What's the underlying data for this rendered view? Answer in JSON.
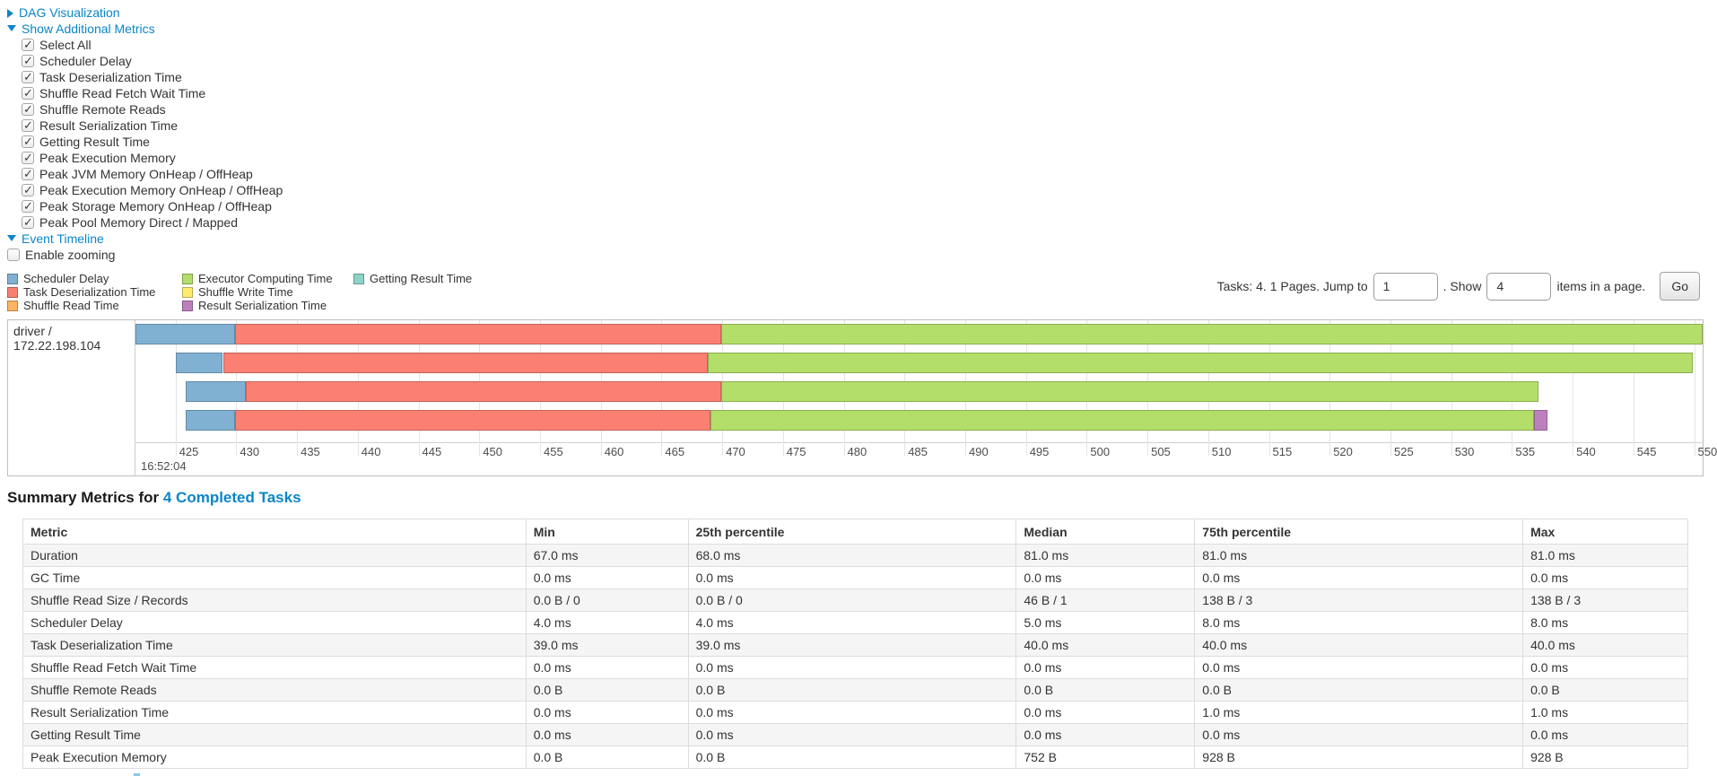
{
  "colors": {
    "link": "#0b85c8",
    "scheduler_delay": "#80B1D3",
    "deserialization_time": "#FB8072",
    "shuffle_read_time": "#FDB462",
    "executor_computing_time": "#B3DE69",
    "shuffle_write_time": "#FFED6F",
    "result_serialization_time": "#BC80BD",
    "getting_result_time": "#8DD3C7"
  },
  "controls": {
    "dag_label": "DAG Visualization",
    "metrics_label": "Show Additional Metrics",
    "metric_checkboxes": [
      {
        "label": "Select All",
        "checked": true
      },
      {
        "label": "Scheduler Delay",
        "checked": true
      },
      {
        "label": "Task Deserialization Time",
        "checked": true
      },
      {
        "label": "Shuffle Read Fetch Wait Time",
        "checked": true
      },
      {
        "label": "Shuffle Remote Reads",
        "checked": true
      },
      {
        "label": "Result Serialization Time",
        "checked": true
      },
      {
        "label": "Getting Result Time",
        "checked": true
      },
      {
        "label": "Peak Execution Memory",
        "checked": true
      },
      {
        "label": "Peak JVM Memory OnHeap / OffHeap",
        "checked": true
      },
      {
        "label": "Peak Execution Memory OnHeap / OffHeap",
        "checked": true
      },
      {
        "label": "Peak Storage Memory OnHeap / OffHeap",
        "checked": true
      },
      {
        "label": "Peak Pool Memory Direct / Mapped",
        "checked": true
      }
    ],
    "event_timeline_label": "Event Timeline",
    "enable_zooming": {
      "label": "Enable zooming",
      "checked": false
    }
  },
  "legend": {
    "columns": [
      [
        {
          "label": "Scheduler Delay",
          "color_key": "scheduler_delay"
        },
        {
          "label": "Task Deserialization Time",
          "color_key": "deserialization_time"
        },
        {
          "label": "Shuffle Read Time",
          "color_key": "shuffle_read_time"
        }
      ],
      [
        {
          "label": "Executor Computing Time",
          "color_key": "executor_computing_time"
        },
        {
          "label": "Shuffle Write Time",
          "color_key": "shuffle_write_time"
        },
        {
          "label": "Result Serialization Time",
          "color_key": "result_serialization_time"
        }
      ],
      [
        {
          "label": "Getting Result Time",
          "color_key": "getting_result_time"
        }
      ]
    ]
  },
  "pagination": {
    "prefix": "Tasks: 4. 1 Pages. Jump to",
    "jump_value": "1",
    "mid": ". Show",
    "show_value": "4",
    "suffix": "items in a page.",
    "go_label": "Go"
  },
  "chart_data": {
    "type": "timeline",
    "group_label": "driver / 172.22.198.104",
    "axis": {
      "min_ms": 421.7,
      "max_ms": 550.7,
      "tick_first": 425,
      "tick_step": 5,
      "tick_last": 550,
      "major_label": "16:52:04",
      "unit": "ms after 16:52:04"
    },
    "tasks": [
      {
        "segments": [
          {
            "name": "Scheduler Delay",
            "color_key": "scheduler_delay",
            "start_ms": 421.7,
            "end_ms": 429.9
          },
          {
            "name": "Task Deserialization Time",
            "color_key": "deserialization_time",
            "start_ms": 429.9,
            "end_ms": 469.9
          },
          {
            "name": "Executor Computing Time",
            "color_key": "executor_computing_time",
            "start_ms": 469.9,
            "end_ms": 550.7
          }
        ]
      },
      {
        "segments": [
          {
            "name": "Scheduler Delay",
            "color_key": "scheduler_delay",
            "start_ms": 425.0,
            "end_ms": 428.9
          },
          {
            "name": "Task Deserialization Time",
            "color_key": "deserialization_time",
            "start_ms": 428.9,
            "end_ms": 468.8
          },
          {
            "name": "Executor Computing Time",
            "color_key": "executor_computing_time",
            "start_ms": 468.8,
            "end_ms": 549.9
          }
        ]
      },
      {
        "segments": [
          {
            "name": "Scheduler Delay",
            "color_key": "scheduler_delay",
            "start_ms": 425.8,
            "end_ms": 430.8
          },
          {
            "name": "Task Deserialization Time",
            "color_key": "deserialization_time",
            "start_ms": 430.8,
            "end_ms": 469.9
          },
          {
            "name": "Executor Computing Time",
            "color_key": "executor_computing_time",
            "start_ms": 469.9,
            "end_ms": 537.2
          }
        ]
      },
      {
        "segments": [
          {
            "name": "Scheduler Delay",
            "color_key": "scheduler_delay",
            "start_ms": 425.8,
            "end_ms": 429.9
          },
          {
            "name": "Task Deserialization Time",
            "color_key": "deserialization_time",
            "start_ms": 429.9,
            "end_ms": 469.0
          },
          {
            "name": "Executor Computing Time",
            "color_key": "executor_computing_time",
            "start_ms": 469.0,
            "end_ms": 536.8
          },
          {
            "name": "Result Serialization Time",
            "color_key": "result_serialization_time",
            "start_ms": 536.8,
            "end_ms": 537.9
          }
        ]
      }
    ]
  },
  "summary": {
    "title_prefix": "Summary Metrics for",
    "title_link": "4 Completed Tasks",
    "table": {
      "headers": [
        "Metric",
        "Min",
        "25th percentile",
        "Median",
        "75th percentile",
        "Max"
      ],
      "rows": [
        {
          "metric": "Duration",
          "values": [
            "67.0 ms",
            "68.0 ms",
            "81.0 ms",
            "81.0 ms",
            "81.0 ms"
          ]
        },
        {
          "metric": "GC Time",
          "values": [
            "0.0 ms",
            "0.0 ms",
            "0.0 ms",
            "0.0 ms",
            "0.0 ms"
          ]
        },
        {
          "metric": "Shuffle Read Size / Records",
          "values": [
            "0.0 B / 0",
            "0.0 B / 0",
            "46 B / 1",
            "138 B / 3",
            "138 B / 3"
          ]
        },
        {
          "metric": "Scheduler Delay",
          "values": [
            "4.0 ms",
            "4.0 ms",
            "5.0 ms",
            "8.0 ms",
            "8.0 ms"
          ]
        },
        {
          "metric": "Task Deserialization Time",
          "values": [
            "39.0 ms",
            "39.0 ms",
            "40.0 ms",
            "40.0 ms",
            "40.0 ms"
          ]
        },
        {
          "metric": "Shuffle Read Fetch Wait Time",
          "values": [
            "0.0 ms",
            "0.0 ms",
            "0.0 ms",
            "0.0 ms",
            "0.0 ms"
          ]
        },
        {
          "metric": "Shuffle Remote Reads",
          "values": [
            "0.0 B",
            "0.0 B",
            "0.0 B",
            "0.0 B",
            "0.0 B"
          ]
        },
        {
          "metric": "Result Serialization Time",
          "values": [
            "0.0 ms",
            "0.0 ms",
            "0.0 ms",
            "1.0 ms",
            "1.0 ms"
          ]
        },
        {
          "metric": "Getting Result Time",
          "values": [
            "0.0 ms",
            "0.0 ms",
            "0.0 ms",
            "0.0 ms",
            "0.0 ms"
          ]
        },
        {
          "metric": "Peak Execution Memory",
          "values": [
            "0.0 B",
            "0.0 B",
            "752 B",
            "928 B",
            "928 B"
          ]
        }
      ]
    }
  }
}
